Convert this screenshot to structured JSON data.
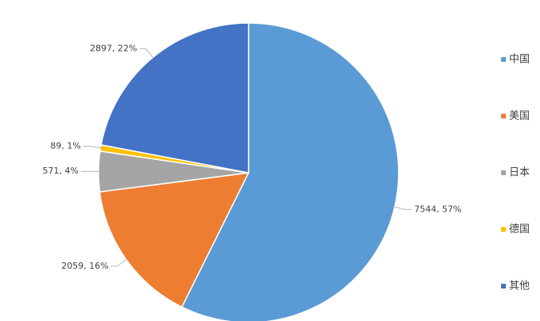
{
  "chart_data": {
    "type": "pie",
    "categories": [
      "中国",
      "美国",
      "日本",
      "德国",
      "其他"
    ],
    "values": [
      7544,
      2059,
      571,
      89,
      2897
    ],
    "value_labels": [
      "7544, 57%",
      "2059, 16%",
      "571, 4%",
      "89, 1%",
      "2897, 22%"
    ],
    "colors": [
      "#5b9bd5",
      "#ed7d31",
      "#a5a5a5",
      "#ffc000",
      "#4472c4"
    ],
    "legend": "right"
  }
}
